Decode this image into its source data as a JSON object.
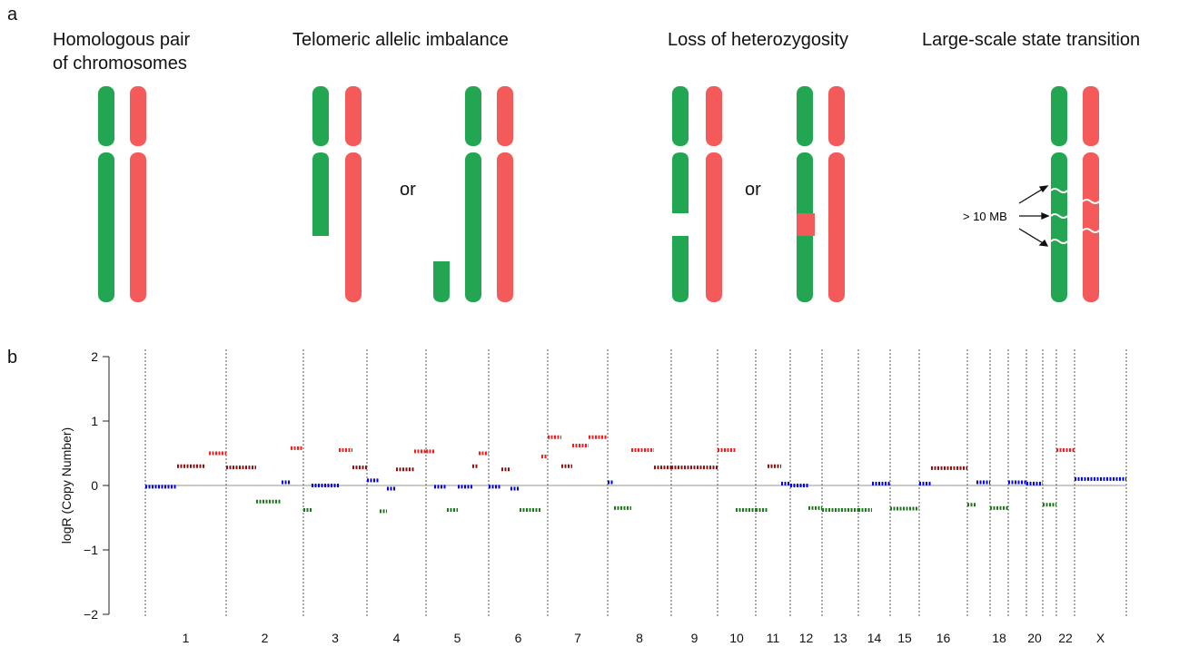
{
  "panel_a": {
    "label": "a",
    "pair_title": [
      "Homologous pair",
      "of chromosomes"
    ],
    "telomeric_title": "Telomeric allelic imbalance",
    "loh_title": "Loss of heterozygosity",
    "lst_title": "Large-scale state transition",
    "or": [
      "or",
      "or"
    ],
    "annotation": "> 10 MB"
  },
  "panel_b_label": "b",
  "chart_data": {
    "type": "segments",
    "ylabel": "logR (Copy Number)",
    "ylim": [
      -2,
      2
    ],
    "yticks": [
      {
        "value": -2,
        "label": "−2"
      },
      {
        "value": -1,
        "label": "−1"
      },
      0,
      1,
      2
    ],
    "xlim": [
      0,
      1080
    ],
    "hline": 0,
    "boundaries": [
      0,
      89,
      174,
      244,
      309,
      378,
      443,
      509,
      579,
      630,
      672,
      710,
      745,
      785,
      820,
      852,
      905,
      930,
      950,
      970,
      988,
      1003,
      1023,
      1080
    ],
    "categories": [
      "1",
      "2",
      "3",
      "4",
      "5",
      "6",
      "7",
      "8",
      "9",
      "10",
      "11",
      "12",
      "13",
      "14",
      "15",
      "16",
      null,
      "18",
      null,
      "20",
      null,
      "22",
      "X"
    ],
    "series": [
      {
        "color": "#0000ee",
        "x": [
          [
            0,
            35
          ],
          [
            150,
            160
          ],
          [
            183,
            213
          ],
          [
            244,
            258
          ],
          [
            266,
            276
          ],
          [
            318,
            332
          ],
          [
            344,
            360
          ],
          [
            378,
            392
          ],
          [
            402,
            412
          ],
          [
            509,
            516
          ],
          [
            700,
            710
          ],
          [
            710,
            730
          ],
          [
            800,
            820
          ],
          [
            852,
            865
          ],
          [
            915,
            930
          ],
          [
            950,
            970
          ],
          [
            970,
            988
          ],
          [
            1023,
            1080
          ]
        ],
        "values": [
          -0.02,
          0.05,
          0,
          0.08,
          -0.05,
          -0.02,
          -0.02,
          -0.02,
          -0.05,
          0.05,
          0.03,
          0,
          0.03,
          0.03,
          0.05,
          0.05,
          0.03,
          0.1
        ]
      },
      {
        "color": "#ff1a1a",
        "x": [
          [
            70,
            89
          ],
          [
            160,
            174
          ],
          [
            213,
            228
          ],
          [
            296,
            309
          ],
          [
            309,
            318
          ],
          [
            367,
            378
          ],
          [
            436,
            443
          ],
          [
            443,
            458
          ],
          [
            470,
            488
          ],
          [
            488,
            509
          ],
          [
            535,
            560
          ],
          [
            630,
            650
          ],
          [
            1003,
            1023
          ]
        ],
        "values": [
          0.5,
          0.58,
          0.55,
          0.53,
          0.53,
          0.5,
          0.45,
          0.75,
          0.62,
          0.75,
          0.55,
          0.55,
          0.55
        ]
      },
      {
        "color": "#8b1010",
        "x": [
          [
            35,
            65
          ],
          [
            89,
            122
          ],
          [
            228,
            244
          ],
          [
            276,
            296
          ],
          [
            360,
            367
          ],
          [
            392,
            402
          ],
          [
            458,
            470
          ],
          [
            560,
            579
          ],
          [
            579,
            630
          ],
          [
            685,
            700
          ],
          [
            865,
            905
          ]
        ],
        "values": [
          0.3,
          0.28,
          0.28,
          0.25,
          0.3,
          0.25,
          0.3,
          0.28,
          0.28,
          0.3,
          0.27
        ]
      },
      {
        "color": "#1a7a1a",
        "x": [
          [
            122,
            150
          ],
          [
            174,
            183
          ],
          [
            258,
            266
          ],
          [
            332,
            344
          ],
          [
            412,
            436
          ],
          [
            516,
            535
          ],
          [
            650,
            672
          ],
          [
            672,
            685
          ],
          [
            730,
            745
          ],
          [
            745,
            785
          ],
          [
            785,
            800
          ],
          [
            820,
            852
          ],
          [
            905,
            915
          ],
          [
            930,
            950
          ],
          [
            988,
            1003
          ]
        ],
        "values": [
          -0.25,
          -0.38,
          -0.4,
          -0.38,
          -0.38,
          -0.35,
          -0.38,
          -0.38,
          -0.35,
          -0.38,
          -0.38,
          -0.36,
          -0.3,
          -0.35,
          -0.3
        ]
      }
    ]
  }
}
